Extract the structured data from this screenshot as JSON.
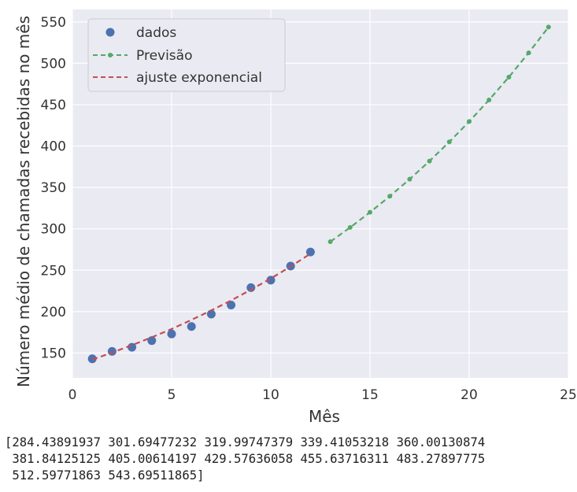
{
  "chart_data": {
    "type": "line",
    "title": "",
    "xlabel": "Mês",
    "ylabel": "Número médio de chamadas recebidas no mês",
    "xlim": [
      0,
      25
    ],
    "ylim": [
      120,
      565
    ],
    "xticks": [
      0,
      5,
      10,
      15,
      20,
      25
    ],
    "yticks": [
      150,
      200,
      250,
      300,
      350,
      400,
      450,
      500,
      550
    ],
    "grid": true,
    "legend_position": "top-left",
    "series": [
      {
        "name": "dados",
        "kind": "scatter",
        "color": "#4c72b0",
        "x": [
          1,
          2,
          3,
          4,
          5,
          6,
          7,
          8,
          9,
          10,
          11,
          12
        ],
        "y": [
          143,
          152,
          157,
          165,
          173,
          182,
          197,
          208,
          229,
          238,
          255,
          272
        ]
      },
      {
        "name": "Previsão",
        "kind": "line-dashed-markers",
        "color": "#55a868",
        "x": [
          13,
          14,
          15,
          16,
          17,
          18,
          19,
          20,
          21,
          22,
          23,
          24
        ],
        "y": [
          284.43891937,
          301.69477232,
          319.99747379,
          339.41053218,
          360.00130874,
          381.84125125,
          405.00614197,
          429.57636058,
          455.63716311,
          483.27897775,
          512.59771863,
          543.69511865
        ]
      },
      {
        "name": "ajuste exponencial",
        "kind": "line-dashed",
        "color": "#c44e52",
        "x": [
          1,
          2,
          3,
          4,
          5,
          6,
          7,
          8,
          9,
          10,
          11,
          12
        ],
        "y": [
          142,
          150.5,
          159.5,
          169,
          179,
          190,
          201.5,
          213.5,
          226.5,
          240,
          254.5,
          270
        ]
      }
    ]
  },
  "console": {
    "output": "[284.43891937 301.69477232 319.99747379 339.41053218 360.00130874\n 381.84125125 405.00614197 429.57636058 455.63716311 483.27897775\n 512.59771863 543.69511865]"
  }
}
